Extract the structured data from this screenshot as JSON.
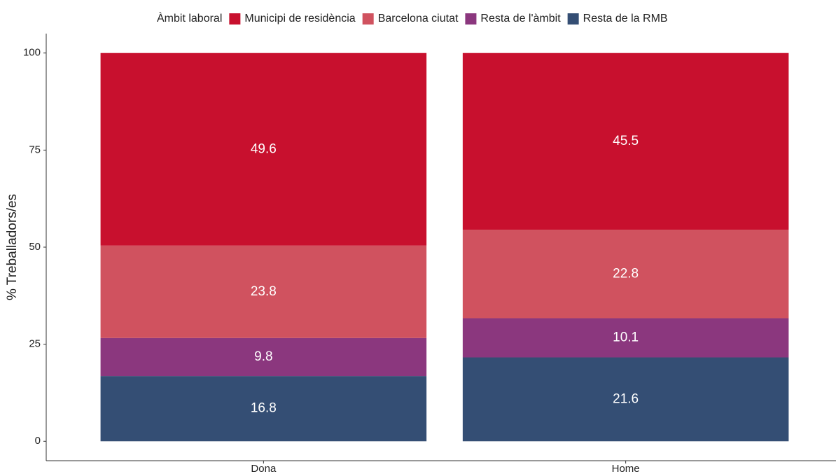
{
  "chart_data": {
    "type": "stacked_bar",
    "legend_title": "Àmbit laboral",
    "ylabel": "% Treballadors/es",
    "categories": [
      "Dona",
      "Home"
    ],
    "series": [
      {
        "name": "Municipi de residència",
        "color": "#c8102e",
        "values": [
          49.6,
          45.5
        ]
      },
      {
        "name": "Barcelona ciutat",
        "color": "#d0525f",
        "values": [
          23.8,
          22.8
        ]
      },
      {
        "name": "Resta de l'àmbit",
        "color": "#8b377e",
        "values": [
          9.8,
          10.1
        ]
      },
      {
        "name": "Resta de la RMB",
        "color": "#344e74",
        "values": [
          16.8,
          21.6
        ]
      }
    ],
    "ylim": [
      -5,
      105
    ],
    "yticks": [
      0,
      25,
      50,
      75,
      100
    ],
    "legend": "top",
    "grid": false
  }
}
